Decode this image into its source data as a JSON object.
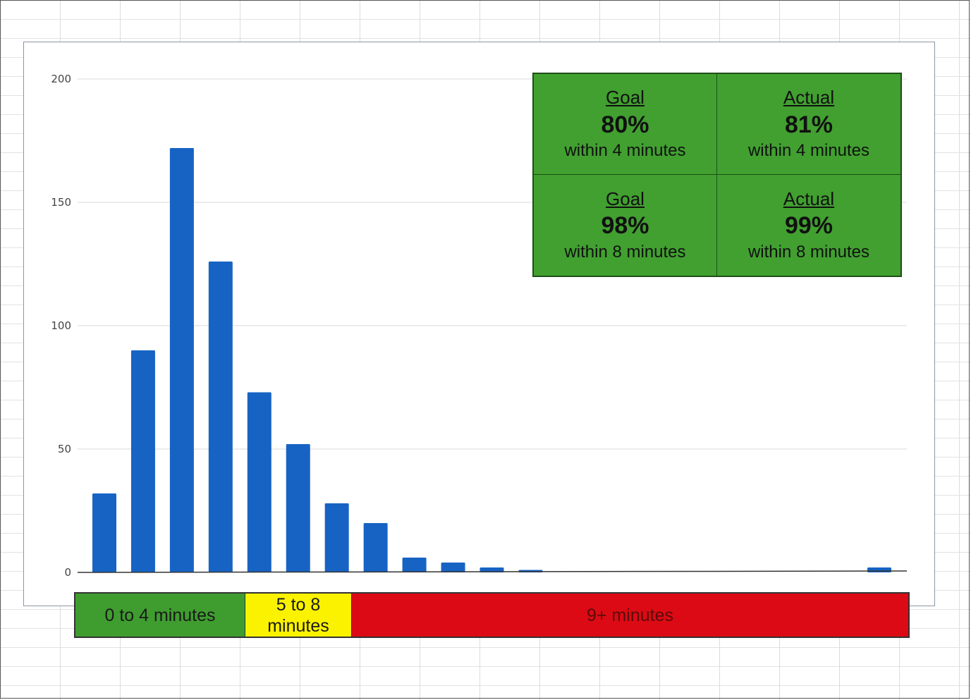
{
  "chart_data": {
    "type": "bar",
    "categories": [
      "",
      "",
      "",
      "",
      "",
      "",
      "",
      "",
      "",
      "",
      "",
      "",
      "",
      "",
      "",
      "",
      "",
      "",
      "",
      "",
      ""
    ],
    "values": [
      32,
      90,
      172,
      126,
      73,
      52,
      28,
      20,
      6,
      4,
      2,
      1,
      0,
      0,
      0,
      0,
      0,
      0,
      0,
      0,
      2
    ],
    "ylim": [
      0,
      200
    ],
    "yticks": [
      "0",
      "50",
      "100",
      "150",
      "200"
    ],
    "xlabel": "",
    "ylabel": "",
    "bar_color": "#1763c4",
    "grid": true
  },
  "goals": [
    {
      "label": "Goal",
      "value": "80%",
      "detail": "within 4 minutes"
    },
    {
      "label": "Actual",
      "value": "81%",
      "detail": "within 4 minutes"
    },
    {
      "label": "Goal",
      "value": "98%",
      "detail": "within 8 minutes"
    },
    {
      "label": "Actual",
      "value": "99%",
      "detail": "within 8 minutes"
    }
  ],
  "bands": [
    {
      "label": "0 to 4 minutes",
      "color": "#3f9d2f"
    },
    {
      "label": "5 to 8 minutes",
      "color": "#fbf200"
    },
    {
      "label": "9+ minutes",
      "color": "#dc0a14"
    }
  ]
}
